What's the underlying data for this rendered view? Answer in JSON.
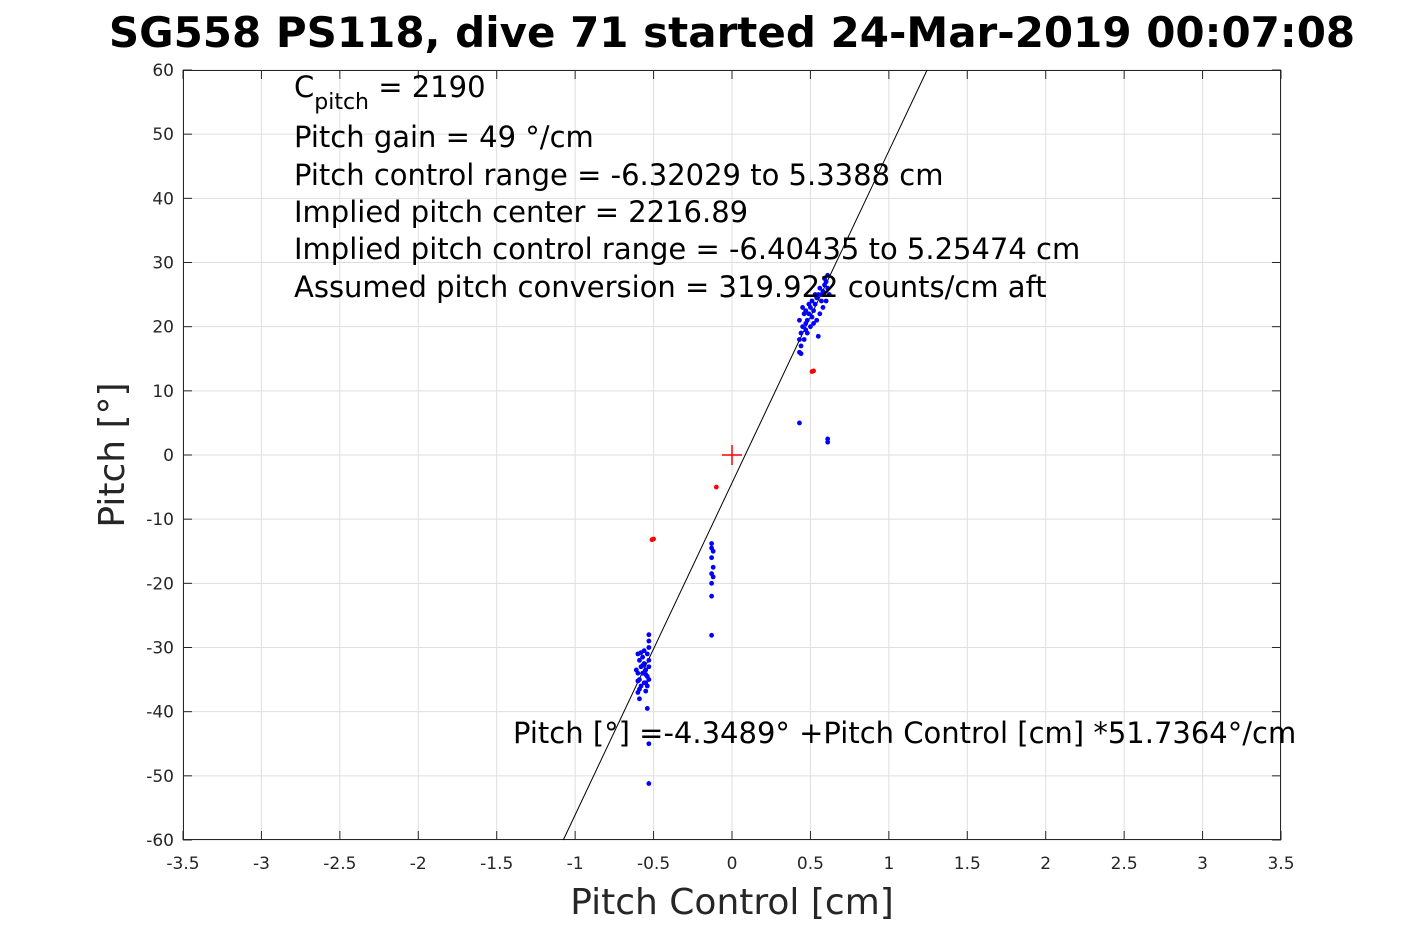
{
  "chart_data": {
    "type": "scatter",
    "title": "SG558 PS118, dive 71 started 24-Mar-2019 00:07:08",
    "xlabel": "Pitch Control [cm]",
    "ylabel": "Pitch [°]",
    "xlim": [
      -3.5,
      3.5
    ],
    "ylim": [
      -60,
      60
    ],
    "x_ticks": [
      "-3.5",
      "-3",
      "-2.5",
      "-2",
      "-1.5",
      "-1",
      "-0.5",
      "0",
      "0.5",
      "1",
      "1.5",
      "2",
      "2.5",
      "3",
      "3.5"
    ],
    "y_ticks": [
      "60",
      "50",
      "40",
      "30",
      "20",
      "10",
      "0",
      "-10",
      "-20",
      "-30",
      "-40",
      "-50",
      "-60"
    ],
    "grid": true,
    "annotations": {
      "c_pitch_label": "C",
      "c_pitch_sub": "pitch",
      "c_pitch_value": " = 2190",
      "pitch_gain": "Pitch gain = 49 °/cm",
      "control_range": "Pitch control range = -6.32029 to 5.3388 cm",
      "implied_center": "Implied pitch center = 2216.89",
      "implied_range": "Implied pitch control range = -6.40435 to 5.25474 cm",
      "conversion": "Assumed pitch conversion = 319.922 counts/cm aft",
      "fit_equation": "Pitch [°] =-4.3489° +Pitch Control [cm] *51.7364°/cm"
    },
    "fit_line": {
      "intercept": -4.3489,
      "slope": 51.7364,
      "color": "#000000"
    },
    "center_marker": {
      "x": 0,
      "y": 0,
      "color": "#ff0000"
    },
    "series": [
      {
        "color": "#0000ff",
        "points": [
          [
            -0.6,
            -31
          ],
          [
            -0.59,
            -32
          ],
          [
            -0.58,
            -33
          ],
          [
            -0.6,
            -34
          ],
          [
            -0.59,
            -35
          ],
          [
            -0.58,
            -36
          ],
          [
            -0.6,
            -37
          ],
          [
            -0.59,
            -38
          ],
          [
            -0.57,
            -31.5
          ],
          [
            -0.56,
            -32.5
          ],
          [
            -0.55,
            -33.5
          ],
          [
            -0.54,
            -34.5
          ],
          [
            -0.55,
            -35.5
          ],
          [
            -0.56,
            -30.5
          ],
          [
            -0.54,
            -31
          ],
          [
            -0.53,
            -32
          ],
          [
            -0.53,
            -33
          ],
          [
            -0.54,
            -36
          ],
          [
            -0.53,
            -35
          ],
          [
            -0.53,
            -28
          ],
          [
            -0.53,
            -29
          ],
          [
            -0.53,
            -30
          ],
          [
            -0.57,
            -34
          ],
          [
            -0.56,
            -35.5
          ],
          [
            -0.58,
            -30.8
          ],
          [
            -0.59,
            -36.5
          ],
          [
            -0.55,
            -36.8
          ],
          [
            -0.54,
            -39.5
          ],
          [
            -0.53,
            -45
          ],
          [
            -0.53,
            -51.2
          ],
          [
            -0.61,
            -33.5
          ],
          [
            -0.6,
            -35.2
          ],
          [
            -0.57,
            -32.8
          ],
          [
            -0.55,
            -34.2
          ],
          [
            -0.13,
            -13.8
          ],
          [
            -0.13,
            -14.5
          ],
          [
            -0.12,
            -15
          ],
          [
            -0.13,
            -16
          ],
          [
            -0.12,
            -17.5
          ],
          [
            -0.13,
            -18.5
          ],
          [
            -0.12,
            -19
          ],
          [
            -0.13,
            -20
          ],
          [
            -0.13,
            -22
          ],
          [
            -0.13,
            -28.1
          ],
          [
            0.43,
            16
          ],
          [
            0.44,
            17
          ],
          [
            0.43,
            18
          ],
          [
            0.44,
            19
          ],
          [
            0.45,
            20
          ],
          [
            0.43,
            21
          ],
          [
            0.46,
            22
          ],
          [
            0.45,
            23
          ],
          [
            0.47,
            19.5
          ],
          [
            0.48,
            21
          ],
          [
            0.49,
            22
          ],
          [
            0.5,
            23
          ],
          [
            0.51,
            24
          ],
          [
            0.52,
            22.5
          ],
          [
            0.53,
            23.5
          ],
          [
            0.54,
            24.5
          ],
          [
            0.55,
            25
          ],
          [
            0.56,
            26
          ],
          [
            0.57,
            24
          ],
          [
            0.58,
            25.5
          ],
          [
            0.59,
            26.5
          ],
          [
            0.6,
            27
          ],
          [
            0.61,
            28
          ],
          [
            0.58,
            23
          ],
          [
            0.56,
            22
          ],
          [
            0.54,
            21
          ],
          [
            0.52,
            20.5
          ],
          [
            0.5,
            20
          ],
          [
            0.48,
            19
          ],
          [
            0.46,
            18
          ],
          [
            0.55,
            18.5
          ],
          [
            0.6,
            24
          ],
          [
            0.62,
            25
          ],
          [
            0.61,
            26
          ],
          [
            0.59,
            27.5
          ],
          [
            0.57,
            25
          ],
          [
            0.53,
            25
          ],
          [
            0.51,
            21.5
          ],
          [
            0.49,
            23.5
          ],
          [
            0.47,
            22.5
          ],
          [
            0.43,
            5
          ],
          [
            0.61,
            2.5
          ],
          [
            0.61,
            2
          ],
          [
            0.47,
            20.5
          ],
          [
            0.44,
            15.8
          ]
        ]
      },
      {
        "color": "#ff0000",
        "points": [
          [
            -0.51,
            -13.2
          ],
          [
            -0.5,
            -13.1
          ],
          [
            0.51,
            13
          ],
          [
            0.52,
            13.1
          ],
          [
            -0.1,
            -5
          ]
        ]
      }
    ]
  }
}
